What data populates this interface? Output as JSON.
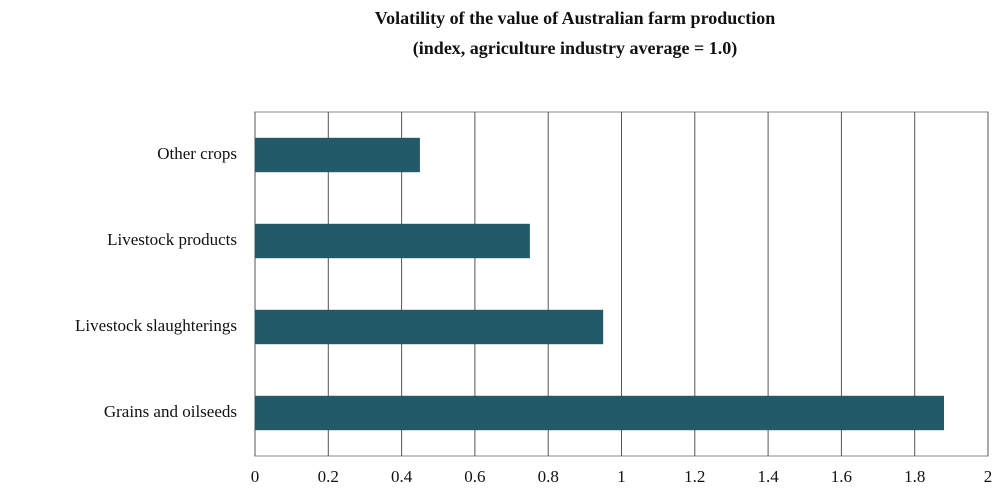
{
  "chart_data": {
    "type": "bar",
    "orientation": "horizontal",
    "title": "Volatility  of the value of Australian  farm  production",
    "subtitle": "(index,  agriculture  industry  average = 1.0)",
    "categories": [
      "Other crops",
      "Livestock products",
      "Livestock slaughterings",
      "Grains and oilseeds"
    ],
    "values": [
      0.45,
      0.75,
      0.95,
      1.88
    ],
    "color": "#235a67",
    "xlim": [
      0,
      2
    ],
    "xticks": [
      0,
      0.2,
      0.4,
      0.6,
      0.8,
      1,
      1.2,
      1.4,
      1.6,
      1.8,
      2
    ],
    "grid": true
  }
}
